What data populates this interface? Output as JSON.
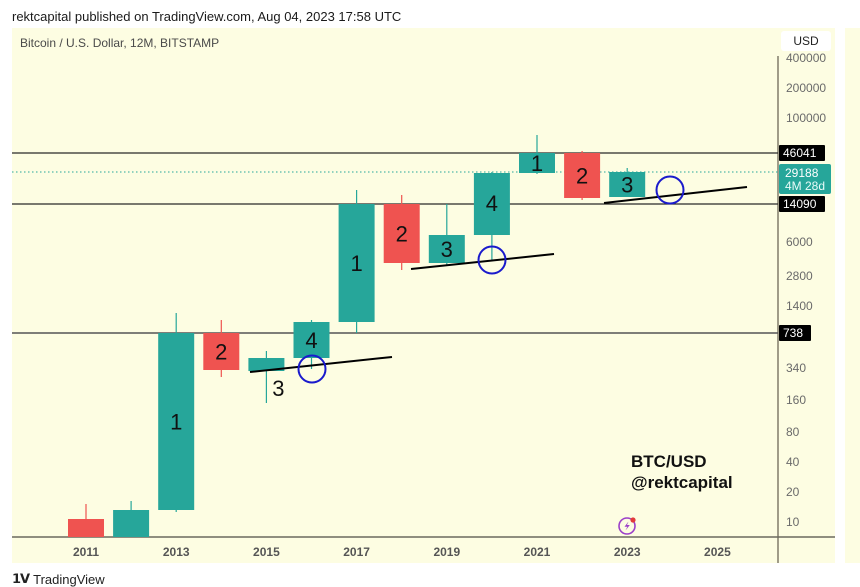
{
  "header": {
    "published": "rektcapital published on TradingView.com, Aug 04, 2023 17:58 UTC",
    "symbol": "Bitcoin / U.S. Dollar, 12M, BITSTAMP",
    "currency_button": "USD"
  },
  "watermark": {
    "line1": "BTC/USD",
    "line2": "@rektcapital"
  },
  "footer": {
    "brand": "TradingView"
  },
  "colors": {
    "background": "#fdfde2",
    "bull": "#26a69a",
    "bear": "#ef5350",
    "circle": "#1a1acc",
    "price_tag": "#000000",
    "current_price_tag": "#26a69a"
  },
  "chart_data": {
    "type": "candlestick",
    "title": "Bitcoin / U.S. Dollar, 12M, BITSTAMP",
    "xlabel": "",
    "ylabel": "USD",
    "y_scale": "log",
    "x_tick_labels": [
      "2011",
      "2013",
      "2015",
      "2017",
      "2019",
      "2021",
      "2023",
      "2025"
    ],
    "y_tick_labels": [
      "400000",
      "200000",
      "100000",
      "6000",
      "2800",
      "1400",
      "340",
      "160",
      "80",
      "40",
      "20",
      "10"
    ],
    "horizontal_levels": [
      {
        "value": 46041,
        "label": "46041",
        "style": "solid"
      },
      {
        "value": 14090,
        "label": "14090",
        "style": "solid"
      },
      {
        "value": 738,
        "label": "738",
        "style": "solid"
      },
      {
        "value": 29188,
        "label": "29188",
        "sublabel": "4M 28d",
        "style": "dotted",
        "current": true
      }
    ],
    "candles": [
      {
        "year": "2011",
        "direction": "bear",
        "open": 14,
        "close": 5,
        "high": 30,
        "low": 5,
        "annotation": ""
      },
      {
        "year": "2012",
        "direction": "bull",
        "open": 5,
        "close": 14,
        "high": 17,
        "low": 5,
        "annotation": ""
      },
      {
        "year": "2013",
        "direction": "bull",
        "open": 14,
        "close": 738,
        "high": 1160,
        "low": 13,
        "annotation": "1"
      },
      {
        "year": "2014",
        "direction": "bear",
        "open": 738,
        "close": 320,
        "high": 1000,
        "low": 280,
        "annotation": "2"
      },
      {
        "year": "2015",
        "direction": "bull",
        "open": 320,
        "close": 430,
        "high": 500,
        "low": 150,
        "annotation": "3"
      },
      {
        "year": "2016",
        "direction": "bull",
        "open": 430,
        "close": 960,
        "high": 980,
        "low": 350,
        "annotation": "4"
      },
      {
        "year": "2017",
        "direction": "bull",
        "open": 960,
        "close": 14090,
        "high": 19700,
        "low": 740,
        "annotation": "1"
      },
      {
        "year": "2018",
        "direction": "bear",
        "open": 14090,
        "close": 3700,
        "high": 17200,
        "low": 3100,
        "annotation": "2"
      },
      {
        "year": "2019",
        "direction": "bull",
        "open": 3700,
        "close": 7200,
        "high": 13900,
        "low": 3400,
        "annotation": "3"
      },
      {
        "year": "2020",
        "direction": "bull",
        "open": 7200,
        "close": 29000,
        "high": 29300,
        "low": 3850,
        "annotation": "4"
      },
      {
        "year": "2021",
        "direction": "bull",
        "open": 29000,
        "close": 46041,
        "high": 69000,
        "low": 28000,
        "annotation": "1"
      },
      {
        "year": "2022",
        "direction": "bear",
        "open": 46041,
        "close": 16500,
        "high": 48000,
        "low": 15500,
        "annotation": "2"
      },
      {
        "year": "2023",
        "direction": "bull",
        "open": 16500,
        "close": 29188,
        "high": 31800,
        "low": 16500,
        "annotation": "3"
      }
    ],
    "trendlines": [
      {
        "from_year": "2015",
        "to_year": "2018",
        "description": "rising support under cycle candle 3"
      },
      {
        "from_year": "2018",
        "to_year": "2020",
        "description": "rising support under cycle candle 3"
      },
      {
        "from_year": "2022",
        "to_year": "2025",
        "description": "rising support under cycle candle 3"
      }
    ],
    "circles": [
      {
        "year": "2016",
        "description": "retest of trendline"
      },
      {
        "year": "2020",
        "description": "retest of trendline"
      },
      {
        "year": "2024",
        "description": "projected retest of trendline"
      }
    ]
  }
}
